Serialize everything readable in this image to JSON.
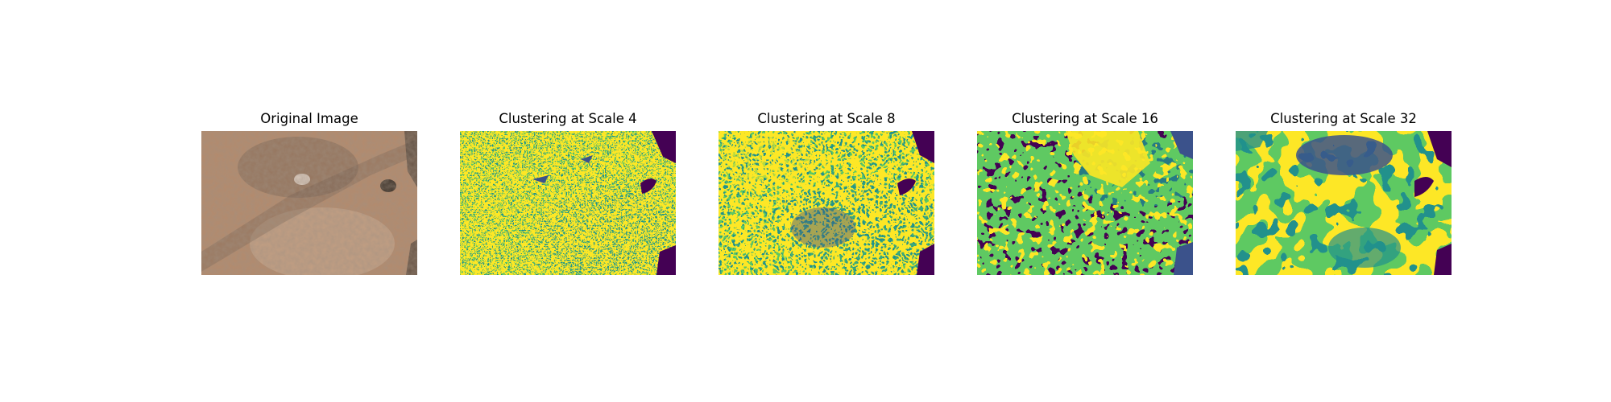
{
  "panels": [
    {
      "id": "original",
      "title": "Original Image",
      "kind": "photo"
    },
    {
      "id": "scale4",
      "title": "Clustering at Scale 4",
      "kind": "cluster",
      "scale": 4
    },
    {
      "id": "scale8",
      "title": "Clustering at Scale 8",
      "kind": "cluster",
      "scale": 8
    },
    {
      "id": "scale16",
      "title": "Clustering at Scale 16",
      "kind": "cluster",
      "scale": 16
    },
    {
      "id": "scale32",
      "title": "Clustering at Scale 32",
      "kind": "cluster",
      "scale": 32
    }
  ],
  "palette": {
    "purple": "#440154",
    "blue": "#3b528b",
    "teal": "#21918c",
    "green": "#5ec962",
    "yellow": "#fde725",
    "photo_base": "#b48a6c",
    "photo_light": "#c9a98f",
    "photo_dark": "#6e5a4c"
  }
}
